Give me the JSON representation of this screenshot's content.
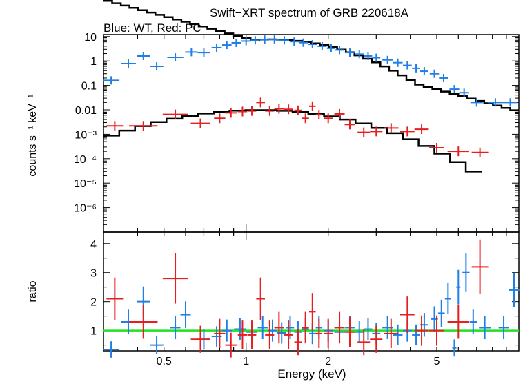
{
  "chart_data": {
    "type": "scatter",
    "title": "Swift−XRT spectrum of GRB 220618A",
    "subtitle": "Blue: WT, Red: PC",
    "xlabel": "Energy (keV)",
    "xscale": "log",
    "xlim": [
      0.3,
      10
    ],
    "xticks": [
      "0.5",
      "1",
      "2",
      "5"
    ],
    "colors": {
      "wt": "#1f7fe6",
      "pc": "#e61e1e",
      "model": "#000000",
      "unity": "#22e022"
    },
    "top_panel": {
      "ylabel": "counts s⁻¹ keV⁻¹",
      "yscale": "log",
      "ylim": [
        1e-07,
        12
      ],
      "yticks": [
        "10",
        "1",
        "0.1",
        "0.01",
        "10⁻³",
        "10⁻⁴",
        "10⁻⁵",
        "10⁻⁶"
      ],
      "series": [
        {
          "name": "WT data",
          "color": "#1f7fe6",
          "points": [
            [
              0.32,
              0.16
            ],
            [
              0.37,
              0.78
            ],
            [
              0.42,
              1.6
            ],
            [
              0.47,
              0.6
            ],
            [
              0.55,
              1.4
            ],
            [
              0.63,
              2.3
            ],
            [
              0.7,
              2.2
            ],
            [
              0.78,
              3.5
            ],
            [
              0.85,
              4.5
            ],
            [
              0.92,
              5.5
            ],
            [
              1.0,
              6.5
            ],
            [
              1.08,
              7.0
            ],
            [
              1.17,
              7.5
            ],
            [
              1.27,
              7.6
            ],
            [
              1.38,
              7.0
            ],
            [
              1.5,
              6.2
            ],
            [
              1.62,
              5.6
            ],
            [
              1.75,
              4.8
            ],
            [
              1.9,
              4.0
            ],
            [
              2.05,
              3.3
            ],
            [
              2.2,
              2.8
            ],
            [
              2.4,
              2.2
            ],
            [
              2.6,
              1.9
            ],
            [
              2.8,
              1.6
            ],
            [
              3.0,
              1.35
            ],
            [
              3.3,
              1.1
            ],
            [
              3.6,
              0.85
            ],
            [
              3.9,
              0.66
            ],
            [
              4.2,
              0.5
            ],
            [
              4.5,
              0.38
            ],
            [
              4.9,
              0.3
            ],
            [
              5.3,
              0.2
            ],
            [
              5.8,
              0.07
            ],
            [
              6.3,
              0.05
            ],
            [
              7.0,
              0.02
            ],
            [
              8.2,
              0.02
            ],
            [
              9.3,
              0.02
            ]
          ]
        },
        {
          "name": "PC data",
          "color": "#e61e1e",
          "points": [
            [
              0.33,
              0.0022
            ],
            [
              0.42,
              0.0022
            ],
            [
              0.55,
              0.0065
            ],
            [
              0.68,
              0.0028
            ],
            [
              0.8,
              0.0045
            ],
            [
              0.88,
              0.0075
            ],
            [
              0.97,
              0.0085
            ],
            [
              1.05,
              0.009
            ],
            [
              1.13,
              0.02
            ],
            [
              1.22,
              0.009
            ],
            [
              1.32,
              0.011
            ],
            [
              1.43,
              0.0105
            ],
            [
              1.55,
              0.0095
            ],
            [
              1.65,
              0.0045
            ],
            [
              1.75,
              0.014
            ],
            [
              1.85,
              0.0063
            ],
            [
              2.0,
              0.0045
            ],
            [
              2.2,
              0.0068
            ],
            [
              2.4,
              0.0025
            ],
            [
              2.7,
              0.0012
            ],
            [
              3.0,
              0.0013
            ],
            [
              3.4,
              0.0018
            ],
            [
              3.9,
              0.0013
            ],
            [
              4.4,
              0.0016
            ],
            [
              5.0,
              0.00028
            ],
            [
              6.0,
              0.0002
            ],
            [
              7.2,
              0.00018
            ]
          ]
        },
        {
          "name": "Model",
          "color": "#000000",
          "points": []
        }
      ]
    },
    "bottom_panel": {
      "ylabel": "ratio",
      "ylim": [
        0.3,
        4.4
      ],
      "yticks": [
        "1",
        "2",
        "3",
        "4"
      ],
      "reference_line": 1,
      "series": [
        {
          "name": "WT ratio",
          "color": "#1f7fe6",
          "points": [
            [
              0.32,
              0.3
            ],
            [
              0.37,
              1.3
            ],
            [
              0.42,
              2.0
            ],
            [
              0.47,
              0.5
            ],
            [
              0.55,
              1.1
            ],
            [
              0.6,
              1.55
            ],
            [
              0.7,
              0.7
            ],
            [
              0.78,
              0.8
            ],
            [
              0.85,
              1.0
            ],
            [
              0.95,
              1.05
            ],
            [
              1.05,
              0.95
            ],
            [
              1.15,
              1.1
            ],
            [
              1.25,
              1.0
            ],
            [
              1.35,
              0.92
            ],
            [
              1.45,
              1.1
            ],
            [
              1.55,
              0.95
            ],
            [
              1.65,
              1.05
            ],
            [
              1.75,
              0.9
            ],
            [
              1.85,
              1.1
            ],
            [
              2.0,
              1.0
            ],
            [
              2.2,
              0.95
            ],
            [
              2.4,
              1.1
            ],
            [
              2.6,
              0.95
            ],
            [
              2.8,
              1.05
            ],
            [
              3.0,
              0.9
            ],
            [
              3.3,
              1.1
            ],
            [
              3.6,
              0.85
            ],
            [
              3.9,
              1.0
            ],
            [
              4.2,
              0.85
            ],
            [
              4.5,
              1.2
            ],
            [
              4.9,
              1.4
            ],
            [
              5.2,
              1.6
            ],
            [
              5.5,
              2.1
            ],
            [
              5.8,
              0.4
            ],
            [
              6.0,
              2.5
            ],
            [
              6.4,
              3.0
            ],
            [
              6.8,
              1.3
            ],
            [
              7.5,
              1.1
            ],
            [
              8.8,
              1.1
            ],
            [
              9.6,
              2.4
            ]
          ]
        },
        {
          "name": "PC ratio",
          "color": "#e61e1e",
          "points": [
            [
              0.33,
              2.1
            ],
            [
              0.42,
              1.3
            ],
            [
              0.55,
              2.8
            ],
            [
              0.68,
              0.7
            ],
            [
              0.8,
              0.9
            ],
            [
              0.88,
              0.5
            ],
            [
              0.97,
              0.85
            ],
            [
              1.05,
              0.85
            ],
            [
              1.13,
              2.1
            ],
            [
              1.22,
              0.85
            ],
            [
              1.32,
              1.1
            ],
            [
              1.43,
              0.85
            ],
            [
              1.55,
              0.6
            ],
            [
              1.65,
              1.1
            ],
            [
              1.75,
              1.65
            ],
            [
              1.85,
              0.9
            ],
            [
              2.0,
              0.9
            ],
            [
              2.2,
              1.1
            ],
            [
              2.4,
              0.95
            ],
            [
              2.7,
              0.6
            ],
            [
              3.0,
              0.7
            ],
            [
              3.4,
              0.9
            ],
            [
              3.9,
              1.55
            ],
            [
              4.4,
              1.0
            ],
            [
              5.0,
              1.0
            ],
            [
              6.0,
              1.3
            ],
            [
              7.2,
              3.2
            ]
          ]
        }
      ]
    }
  }
}
